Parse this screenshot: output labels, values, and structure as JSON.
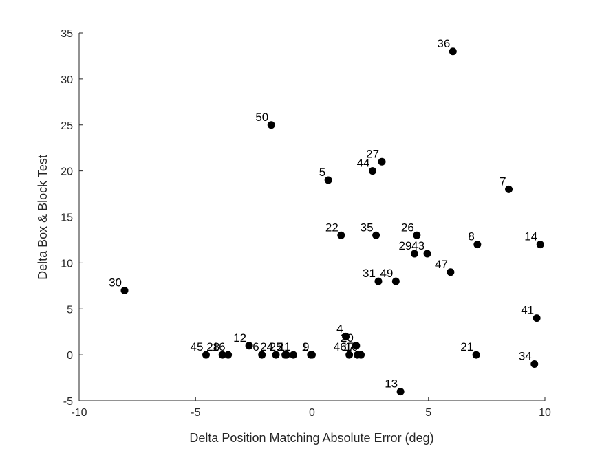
{
  "chart_data": {
    "type": "scatter",
    "title": "",
    "xlabel": "Delta Position Matching Absolute Error (deg)",
    "ylabel": "Delta Box & Block Test",
    "xlim": [
      -10,
      10
    ],
    "ylim": [
      -5,
      35
    ],
    "xticks": [
      -10,
      -5,
      0,
      5,
      10
    ],
    "yticks": [
      -5,
      0,
      5,
      10,
      15,
      20,
      25,
      30,
      35
    ],
    "grid": false,
    "box": false,
    "marker_color": "#000000",
    "points": [
      {
        "label": "36",
        "x": 6.05,
        "y": 33
      },
      {
        "label": "50",
        "x": -1.75,
        "y": 25
      },
      {
        "label": "27",
        "x": 3.0,
        "y": 21
      },
      {
        "label": "44",
        "x": 2.6,
        "y": 20
      },
      {
        "label": "5",
        "x": 0.7,
        "y": 19
      },
      {
        "label": "7",
        "x": 8.45,
        "y": 18
      },
      {
        "label": "22",
        "x": 1.25,
        "y": 13
      },
      {
        "label": "35",
        "x": 2.75,
        "y": 13
      },
      {
        "label": "26",
        "x": 4.5,
        "y": 13
      },
      {
        "label": "8",
        "x": 7.1,
        "y": 12
      },
      {
        "label": "14",
        "x": 9.8,
        "y": 12
      },
      {
        "label": "29",
        "x": 4.4,
        "y": 11
      },
      {
        "label": "43",
        "x": 4.95,
        "y": 11
      },
      {
        "label": "47",
        "x": 5.95,
        "y": 9
      },
      {
        "label": "31",
        "x": 2.85,
        "y": 8
      },
      {
        "label": "49",
        "x": 3.6,
        "y": 8
      },
      {
        "label": "30",
        "x": -8.05,
        "y": 7
      },
      {
        "label": "41",
        "x": 9.65,
        "y": 4
      },
      {
        "label": "4",
        "x": 1.45,
        "y": 2
      },
      {
        "label": "12",
        "x": -2.7,
        "y": 1
      },
      {
        "label": "20",
        "x": 1.9,
        "y": 1
      },
      {
        "label": "45",
        "x": -4.55,
        "y": 0
      },
      {
        "label": "28",
        "x": -3.85,
        "y": 0
      },
      {
        "label": "16",
        "x": -3.6,
        "y": 0
      },
      {
        "label": "6",
        "x": -2.15,
        "y": 0
      },
      {
        "label": "24",
        "x": -1.55,
        "y": 0
      },
      {
        "label": "25",
        "x": -1.15,
        "y": 0
      },
      {
        "label": "2",
        "x": -1.1,
        "y": 0
      },
      {
        "label": "11",
        "x": -0.8,
        "y": 0
      },
      {
        "label": "1",
        "x": -0.05,
        "y": 0
      },
      {
        "label": "9",
        "x": 0.0,
        "y": 0
      },
      {
        "label": "46",
        "x": 1.6,
        "y": 0
      },
      {
        "label": "17",
        "x": 1.95,
        "y": 0
      },
      {
        "label": "10",
        "x": 2.1,
        "y": 0
      },
      {
        "label": "21",
        "x": 7.05,
        "y": 0
      },
      {
        "label": "34",
        "x": 9.55,
        "y": -1
      },
      {
        "label": "13",
        "x": 3.8,
        "y": -4
      }
    ]
  }
}
